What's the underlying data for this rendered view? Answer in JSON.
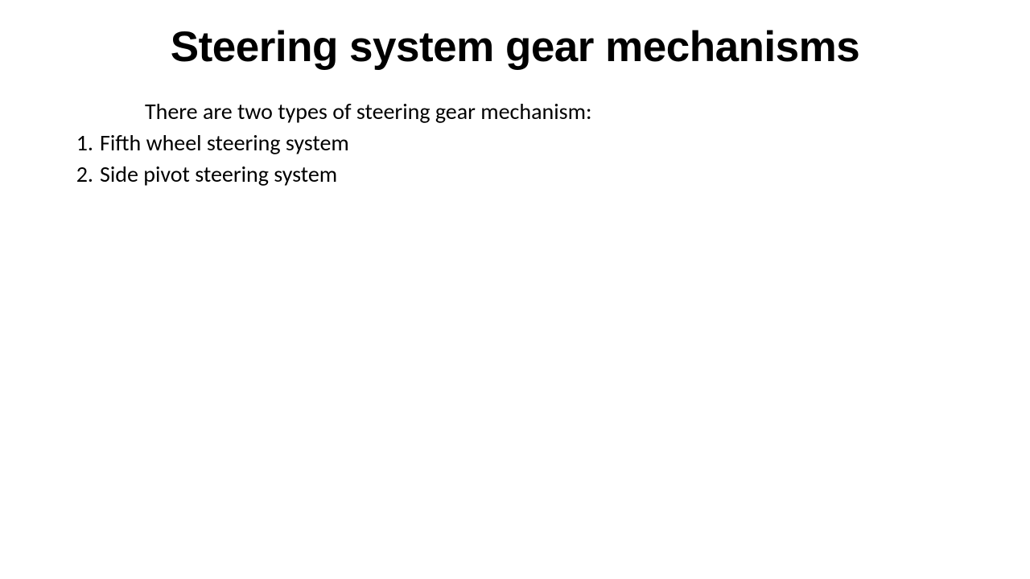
{
  "slide": {
    "title": "Steering system gear mechanisms",
    "intro": "There are two types of steering gear mechanism:",
    "items": [
      "Fifth wheel steering system",
      "Side pivot steering system"
    ],
    "background_color": "#ffffff",
    "text_color": "#000000",
    "title_fontsize": 53,
    "body_fontsize": 28,
    "title_font": "Arial",
    "body_font": "Calibri"
  }
}
